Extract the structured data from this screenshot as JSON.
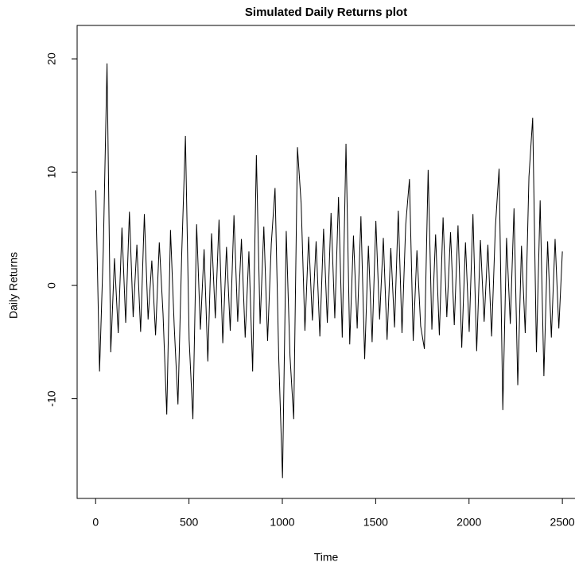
{
  "chart_data": {
    "type": "line",
    "title": "Simulated Daily Returns plot",
    "x_label": "Time",
    "y_label": "Daily Returns",
    "x": [
      1,
      21,
      41,
      61,
      81,
      101,
      121,
      141,
      161,
      181,
      201,
      221,
      241,
      261,
      281,
      301,
      321,
      341,
      361,
      381,
      401,
      421,
      441,
      461,
      481,
      501,
      521,
      541,
      561,
      581,
      601,
      621,
      641,
      661,
      681,
      701,
      721,
      741,
      761,
      781,
      801,
      821,
      841,
      861,
      881,
      901,
      921,
      941,
      961,
      981,
      1001,
      1021,
      1041,
      1061,
      1081,
      1101,
      1121,
      1141,
      1161,
      1181,
      1201,
      1221,
      1241,
      1261,
      1281,
      1301,
      1321,
      1341,
      1361,
      1381,
      1401,
      1421,
      1441,
      1461,
      1481,
      1501,
      1521,
      1541,
      1561,
      1581,
      1601,
      1621,
      1641,
      1661,
      1681,
      1701,
      1721,
      1741,
      1761,
      1781,
      1801,
      1821,
      1841,
      1861,
      1881,
      1901,
      1921,
      1941,
      1961,
      1981,
      2001,
      2021,
      2041,
      2061,
      2081,
      2101,
      2121,
      2141,
      2161,
      2181,
      2201,
      2221,
      2241,
      2261,
      2281,
      2301,
      2321,
      2341,
      2361,
      2381,
      2401,
      2421,
      2441,
      2461,
      2481,
      2500
    ],
    "values": [
      8.4,
      -7.6,
      3.1,
      19.6,
      -5.9,
      2.4,
      -4.2,
      5.1,
      -3.3,
      6.5,
      -2.8,
      3.6,
      -4.1,
      6.3,
      -3.0,
      2.2,
      -4.4,
      3.8,
      -2.5,
      -11.4,
      4.9,
      -3.6,
      -10.5,
      2.7,
      13.2,
      -4.8,
      -11.8,
      5.4,
      -3.9,
      3.2,
      -6.7,
      4.6,
      -2.9,
      5.8,
      -5.1,
      3.4,
      -4.0,
      6.2,
      -3.2,
      4.1,
      -4.6,
      3.0,
      -7.6,
      11.5,
      -3.4,
      5.2,
      -4.9,
      3.7,
      8.6,
      -6.5,
      -17,
      4.8,
      -6.2,
      -11.8,
      12.2,
      7.2,
      -4.0,
      4.3,
      -3.1,
      3.9,
      -4.5,
      5.0,
      -3.3,
      6.4,
      -2.9,
      7.8,
      -4.6,
      12.5,
      -5.2,
      4.4,
      -3.8,
      6.1,
      -6.5,
      3.5,
      -5.0,
      5.7,
      -3.0,
      4.2,
      -4.8,
      3.3,
      -3.7,
      6.6,
      -4.2,
      5.4,
      9.4,
      -4.9,
      3.1,
      -3.6,
      -5.6,
      10.2,
      -3.9,
      4.5,
      -4.4,
      6.0,
      -2.8,
      4.7,
      -3.5,
      5.3,
      -5.5,
      3.8,
      -4.1,
      6.3,
      -5.8,
      4.0,
      -3.2,
      3.6,
      -4.5,
      5.1,
      10.3,
      -11,
      4.2,
      -3.4,
      6.8,
      -8.8,
      3.5,
      -4.2,
      9.6,
      14.8,
      -5.9,
      7.5,
      -8,
      3.9,
      -4.6,
      4.1,
      -3.8,
      3.0
    ],
    "color": "#000000",
    "xlim": [
      -99,
      2600
    ],
    "xticks": [
      0,
      500,
      1000,
      1500,
      2000,
      2500
    ],
    "ylim": [
      -18.8,
      22.95
    ],
    "yticks": [
      -10,
      0,
      10,
      20
    ],
    "yticks_labels_note_free": null
  }
}
